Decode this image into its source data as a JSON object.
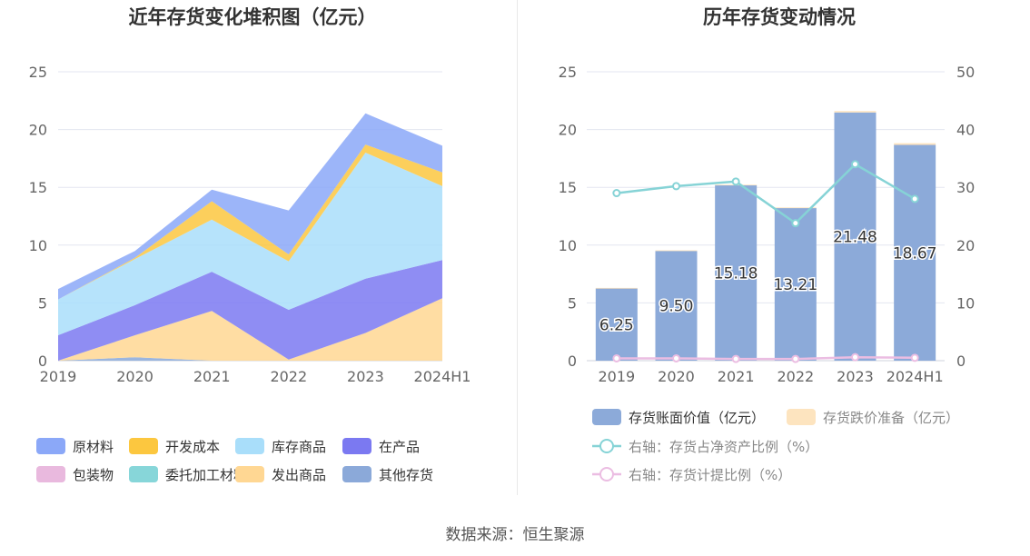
{
  "source_note": "数据来源：恒生聚源",
  "colors": {
    "raw": "#8ba8f8",
    "dev_cost": "#fcc73f",
    "stock_goods": "#a9defa",
    "wip": "#7b79f1",
    "packaging": "#e9b9de",
    "consigned": "#87d6d9",
    "shipped": "#ffd793",
    "other": "#8ba9d9",
    "book_value": "#8caad9",
    "reserve": "#fde4bf",
    "net_asset_ratio": "#86d3d6",
    "provision_ratio": "#ebbde2",
    "axis_text": "#666666",
    "grid": "#e3e6f0",
    "title": "#333333"
  },
  "chart_data": [
    {
      "type": "area",
      "title": "近年存货变化堆积图（亿元）",
      "categories": [
        "2019",
        "2020",
        "2021",
        "2022",
        "2023",
        "2024H1"
      ],
      "y_ticks": [
        "0",
        "5",
        "10",
        "15",
        "20",
        "25"
      ],
      "ylim": [
        0,
        25
      ],
      "stack_order": [
        "其他存货",
        "发出商品",
        "在产品",
        "库存商品",
        "开发成本",
        "原材料"
      ],
      "series": [
        {
          "name": "原材料",
          "color_key": "raw",
          "values": [
            0.9,
            0.6,
            1.0,
            3.8,
            2.7,
            2.3
          ]
        },
        {
          "name": "开发成本",
          "color_key": "dev_cost",
          "values": [
            0.0,
            0.1,
            1.6,
            0.6,
            0.7,
            1.2
          ]
        },
        {
          "name": "库存商品",
          "color_key": "stock_goods",
          "values": [
            3.1,
            4.0,
            4.5,
            4.2,
            10.9,
            6.4
          ]
        },
        {
          "name": "在产品",
          "color_key": "wip",
          "values": [
            2.2,
            2.6,
            3.4,
            4.3,
            4.7,
            3.3
          ]
        },
        {
          "name": "包装物",
          "color_key": "packaging",
          "values": [
            0,
            0,
            0,
            0,
            0,
            0
          ]
        },
        {
          "name": "委托加工材料",
          "color_key": "consigned",
          "values": [
            0,
            0,
            0,
            0,
            0,
            0
          ]
        },
        {
          "name": "发出商品",
          "color_key": "shipped",
          "values": [
            0.0,
            1.9,
            4.3,
            0.1,
            2.4,
            5.4
          ]
        },
        {
          "name": "其他存货",
          "color_key": "other",
          "values": [
            0.0,
            0.3,
            0.0,
            0.0,
            0.0,
            0.0
          ]
        }
      ],
      "legend": [
        [
          "原材料",
          "开发成本",
          "库存商品",
          "在产品"
        ],
        [
          "包装物",
          "委托加工材料",
          "发出商品",
          "其他存货"
        ]
      ],
      "legend_keys": [
        [
          "raw",
          "dev_cost",
          "stock_goods",
          "wip"
        ],
        [
          "packaging",
          "consigned",
          "shipped",
          "other"
        ]
      ],
      "grid": true,
      "legend_position": "bottom"
    },
    {
      "type": "bar",
      "title": "历年存货变动情况",
      "categories": [
        "2019",
        "2020",
        "2021",
        "2022",
        "2023",
        "2024H1"
      ],
      "y_left_ticks": [
        "0",
        "5",
        "10",
        "15",
        "20",
        "25"
      ],
      "y_right_ticks": [
        "0",
        "10",
        "20",
        "30",
        "40",
        "50"
      ],
      "ylim_left": [
        0,
        25
      ],
      "ylim_right": [
        0,
        50
      ],
      "bars": [
        {
          "name": "存货账面价值（亿元）",
          "color_key": "book_value",
          "values": [
            6.25,
            9.5,
            15.18,
            13.21,
            21.48,
            18.67
          ],
          "labels": [
            "6.25",
            "9.50",
            "15.18",
            "13.21",
            "21.48",
            "18.67"
          ]
        },
        {
          "name": "存货跌价准备（亿元）",
          "color_key": "reserve",
          "values": [
            0.05,
            0.05,
            0.05,
            0.05,
            0.12,
            0.15
          ]
        }
      ],
      "lines": [
        {
          "name": "右轴：存货占净资产比例（%）",
          "color_key": "net_asset_ratio",
          "axis": "right",
          "values": [
            29.0,
            30.2,
            31.0,
            23.8,
            34.0,
            28.0
          ]
        },
        {
          "name": "右轴：存货计提比例（%）",
          "color_key": "provision_ratio",
          "axis": "right",
          "values": [
            0.4,
            0.4,
            0.3,
            0.3,
            0.6,
            0.5
          ]
        }
      ],
      "grid": true,
      "legend_position": "bottom"
    }
  ]
}
